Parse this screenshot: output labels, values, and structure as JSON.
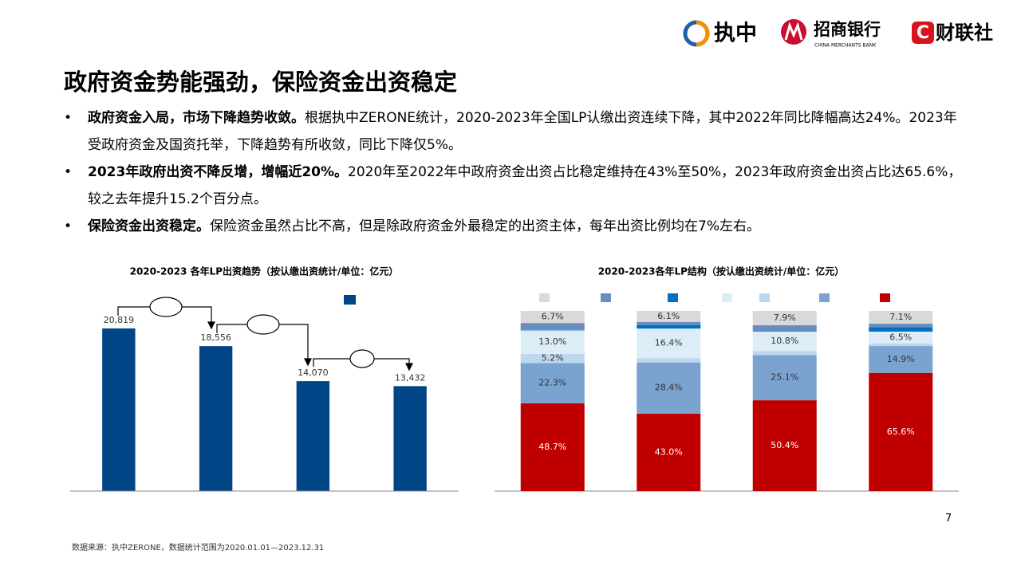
{
  "header": {
    "title": "政府资金势能强劲，保险资金出资稳定"
  },
  "logos": {
    "zhizhong": "执中",
    "cmb": "招商银行",
    "cmb_en": "CHINA MERCHANTS BANK",
    "cls_mark": "C",
    "cls": "财联社"
  },
  "bullets": [
    {
      "lead": "政府资金入局，市场下降趋势收敛。",
      "text": "根据执中ZERONE统计，2020-2023年全国LP认缴出资连续下降，其中2022年同比降幅高达24%。2023年受政府资金及国资托举，下降趋势有所收敛，同比下降仅5%。"
    },
    {
      "lead": "2023年政府出资不降反增，增幅近20%。",
      "text": "2020年至2022年中政府资金出资占比稳定维持在43%至50%，2023年政府资金出资占比达65.6%，较之去年提升15.2个百分点。"
    },
    {
      "lead": "保险资金出资稳定。",
      "text": "保险资金虽然占比不高，但是除政府资金外最稳定的出资主体，每年出资比例均在7%左右。"
    }
  ],
  "chart_data": [
    {
      "type": "bar",
      "title": "2020-2023 各年LP出资趋势（按认缴出资统计/单位：亿元）",
      "categories": [
        null,
        null,
        null,
        null
      ],
      "values": [
        20819,
        18556,
        14070,
        13432
      ],
      "value_labels": [
        "20,819",
        "18,556",
        "14,070",
        "13,432"
      ],
      "color": "#004586",
      "ylim": [
        0,
        25000
      ]
    },
    {
      "type": "stacked_bar",
      "title": "2020-2023各年LP结构（按认缴出资统计/单位：亿元）",
      "categories": [
        null,
        null,
        null,
        null
      ],
      "ylim": [
        0,
        100
      ],
      "series": [
        {
          "color": "#c00000",
          "values": [
            48.7,
            43.0,
            50.4,
            65.6
          ],
          "value_labels": [
            "48.7%",
            "43.0%",
            "50.4%",
            "65.6%"
          ]
        },
        {
          "color": "#7ba3cf",
          "values": [
            22.3,
            28.4,
            25.1,
            14.9
          ],
          "value_labels": [
            "22.3%",
            "28.4%",
            "25.1%",
            "14.9%"
          ]
        },
        {
          "color": "#bdd7ee",
          "values": [
            5.2,
            2.4,
            2.3,
            1.5
          ],
          "value_labels": [
            "5.2%",
            null,
            null,
            null
          ]
        },
        {
          "color": "#dcedf8",
          "values": [
            13.0,
            16.4,
            10.8,
            6.5
          ],
          "value_labels": [
            "13.0%",
            "16.4%",
            "10.8%",
            "6.5%"
          ]
        },
        {
          "color": "#0070c0",
          "values": [
            0.3,
            2.0,
            0.5,
            2.5
          ]
        },
        {
          "color": "#6a8dbf",
          "values": [
            3.8,
            1.7,
            3.0,
            1.9
          ]
        },
        {
          "color": "#d9d9d9",
          "values": [
            6.7,
            6.1,
            7.9,
            7.1
          ],
          "value_labels": [
            "6.7%",
            "6.1%",
            "7.9%",
            "7.1%"
          ]
        }
      ]
    }
  ],
  "page_number": "7",
  "source": "数据来源：执中ZERONE，数据统计范围为2020.01.01—2023.12.31"
}
